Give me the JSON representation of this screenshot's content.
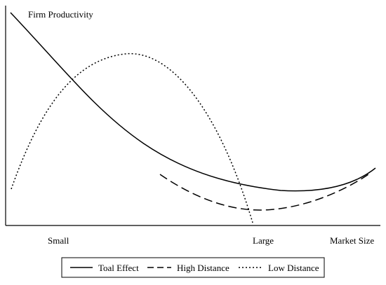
{
  "chart_data": {
    "type": "line",
    "ylabel": "Firm Productivity",
    "xlabel": "Market Size",
    "x_tick_labels": [
      "Small",
      "Large"
    ],
    "grid": false,
    "legend_placement": "bottom",
    "series": [
      {
        "name": "Toal Effect",
        "style": "solid",
        "color": "#000000"
      },
      {
        "name": "High Distance",
        "style": "dashed",
        "color": "#000000"
      },
      {
        "name": "Low Distance",
        "style": "dotted",
        "color": "#000000"
      }
    ]
  }
}
